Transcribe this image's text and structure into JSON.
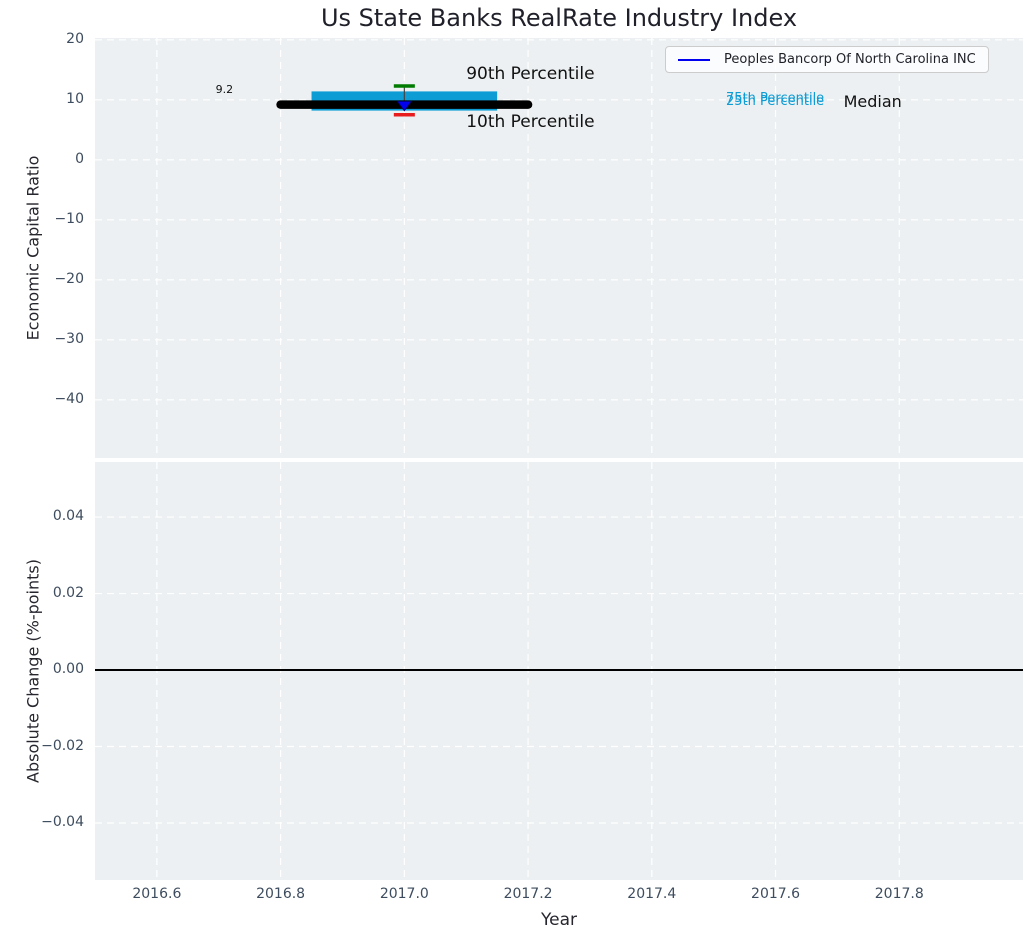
{
  "figure": {
    "title": "Us State Banks RealRate Industry Index",
    "colors": {
      "background": "#ffffff",
      "axes_background": "#ecf0f2",
      "grid": "#ffffff",
      "tick_label": "#3d4c5e",
      "axis_label": "#26262e",
      "title": "#20202a"
    }
  },
  "legend": {
    "entries": [
      {
        "label": "Peoples Bancorp Of North Carolina INC",
        "color": "#0101f0",
        "swatch": "line"
      }
    ]
  },
  "chart_data": [
    {
      "type": "boxplot",
      "panel": "top",
      "ylabel": "Economic Capital Ratio",
      "xlim": [
        2016.5,
        2018.0
      ],
      "ylim": [
        -49.7,
        20.3
      ],
      "grid_xticks": [
        2016.6,
        2016.8,
        2017.0,
        2017.2,
        2017.4,
        2017.6,
        2017.8
      ],
      "yticks": [
        {
          "v": 20,
          "label": "20"
        },
        {
          "v": 10,
          "label": "10"
        },
        {
          "v": 0,
          "label": "0"
        },
        {
          "v": -10,
          "label": "−10"
        },
        {
          "v": -20,
          "label": "−20"
        },
        {
          "v": -30,
          "label": "−30"
        },
        {
          "v": -40,
          "label": "−40"
        }
      ],
      "box": {
        "year": 2017.0,
        "median": 9.2,
        "q1": 8.2,
        "q3": 11.4,
        "p10": 7.5,
        "p90": 12.3,
        "company_value": 9.0,
        "box_span": [
          2016.85,
          2017.15
        ],
        "median_span": [
          2016.8,
          2017.2
        ],
        "whisker_halfwidth_years": 0.017,
        "colors": {
          "box": "#0e9cd4",
          "median_line": "#000000",
          "p90_tick": "#007a00",
          "p10_tick": "#e81c1c",
          "company_marker": "#0101f0",
          "stem": "#444444"
        }
      },
      "annotations": [
        {
          "id": "median-value",
          "text": "9.2",
          "x": 2016.695,
          "y": 12.7,
          "size": 11,
          "color": "#111111"
        },
        {
          "id": "p90-label",
          "text": "90th Percentile",
          "x": 2017.1,
          "y": 15.6,
          "size": 17,
          "color": "#111111"
        },
        {
          "id": "p10-label",
          "text": "10th Percentile",
          "x": 2017.1,
          "y": 7.7,
          "size": 17,
          "color": "#111111"
        },
        {
          "id": "p75-label",
          "text": "75th Percentile",
          "x": 2017.52,
          "y": 11.3,
          "size": 13,
          "color": "#0e9cd4"
        },
        {
          "id": "p25-label",
          "text": "25th Percentile",
          "x": 2017.52,
          "y": 10.75,
          "size": 13,
          "color": "#0e9cd4"
        },
        {
          "id": "median-label",
          "text": "Median",
          "x": 2017.71,
          "y": 11.0,
          "size": 16,
          "color": "#111111"
        }
      ]
    },
    {
      "type": "line",
      "panel": "bottom",
      "ylabel": "Absolute Change (%-points)",
      "xlabel": "Year",
      "xlim": [
        2016.5,
        2018.0
      ],
      "ylim": [
        -0.0549,
        0.0544
      ],
      "xticks": [
        {
          "v": 2016.6,
          "label": "2016.6"
        },
        {
          "v": 2016.8,
          "label": "2016.8"
        },
        {
          "v": 2017.0,
          "label": "2017.0"
        },
        {
          "v": 2017.2,
          "label": "2017.2"
        },
        {
          "v": 2017.4,
          "label": "2017.4"
        },
        {
          "v": 2017.6,
          "label": "2017.6"
        },
        {
          "v": 2017.8,
          "label": "2017.8"
        }
      ],
      "yticks": [
        {
          "v": 0.04,
          "label": "0.04"
        },
        {
          "v": 0.02,
          "label": "0.02"
        },
        {
          "v": 0.0,
          "label": "0.00"
        },
        {
          "v": -0.02,
          "label": "−0.02"
        },
        {
          "v": -0.04,
          "label": "−0.04"
        }
      ],
      "zero_line": {
        "y": 0.0,
        "color": "#000000"
      },
      "series": []
    }
  ]
}
